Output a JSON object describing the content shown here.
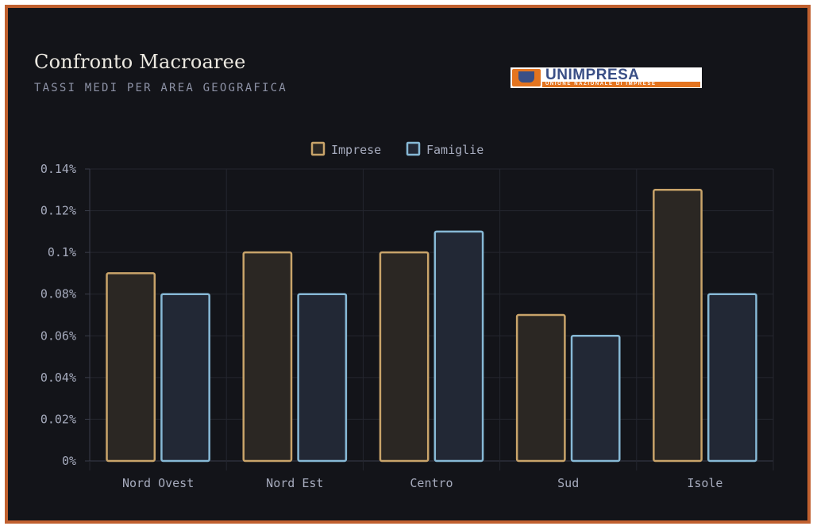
{
  "title": "Confronto Macroaree",
  "subtitle": "TASSI MEDI PER AREA GEOGRAFICA",
  "logo": {
    "name": "UNIMPRESA",
    "tagline": "UNIONE NAZIONALE DI IMPRESE"
  },
  "colors": {
    "background": "#131419",
    "frame": "#c0602f",
    "grid": "#24262f",
    "imprese_stroke": "#c9a46a",
    "imprese_fill": "#2b2723",
    "famiglie_stroke": "#87b9d6",
    "famiglie_fill": "#222835"
  },
  "chart_data": {
    "type": "bar",
    "categories": [
      "Nord Ovest",
      "Nord Est",
      "Centro",
      "Sud",
      "Isole"
    ],
    "series": [
      {
        "name": "Imprese",
        "values": [
          0.09,
          0.1,
          0.1,
          0.07,
          0.13
        ]
      },
      {
        "name": "Famiglie",
        "values": [
          0.08,
          0.08,
          0.11,
          0.06,
          0.08
        ]
      }
    ],
    "ylim": [
      0,
      0.14
    ],
    "yticks": [
      0,
      0.02,
      0.04,
      0.06,
      0.08,
      0.1,
      0.12,
      0.14
    ],
    "ytick_labels": [
      "0%",
      "0.02%",
      "0.04%",
      "0.06%",
      "0.08%",
      "0.1%",
      "0.12%",
      "0.14%"
    ],
    "legend_position": "top-center",
    "grid": true
  }
}
